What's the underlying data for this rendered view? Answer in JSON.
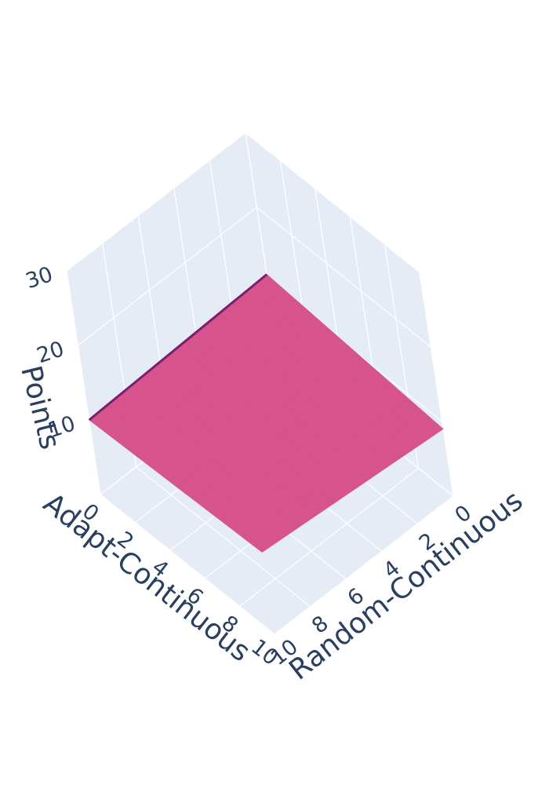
{
  "chart_data": {
    "type": "surface",
    "title": "",
    "x_axis": {
      "label": "Adapt-Continuous",
      "range": [
        0,
        10
      ],
      "ticks": [
        "0",
        "2",
        "4",
        "6",
        "8",
        "10"
      ]
    },
    "y_axis": {
      "label": "Random-Continuous",
      "range": [
        0,
        10
      ],
      "ticks": [
        "0",
        "2",
        "4",
        "6",
        "8",
        "10"
      ]
    },
    "z_axis": {
      "label": "Points",
      "range": [
        0,
        30
      ],
      "ticks": [
        "10",
        "20",
        "30"
      ]
    },
    "grid": true,
    "surface_color": "#d6538c",
    "surface_edge_color": "#7a1f6e",
    "scene_background": "#e5ecf6",
    "gridline_color": "#ffffff",
    "corner_values": {
      "adapt0_random0": 11,
      "adapt0_random10": 10,
      "adapt10_random0": 9,
      "adapt10_random10": 11
    }
  }
}
